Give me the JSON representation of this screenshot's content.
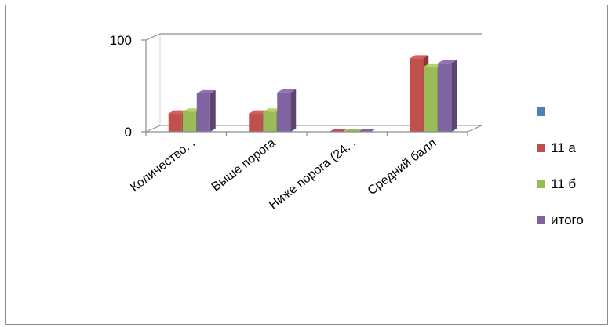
{
  "chart_data": {
    "type": "bar",
    "variant": "3d-clustered-column",
    "categories": [
      "Количество...",
      "Выше порога",
      "Ниже порога (24...",
      "Средний балл"
    ],
    "series": [
      {
        "name": "",
        "color": "#4f81bd",
        "values": [
          0,
          0,
          0,
          0
        ]
      },
      {
        "name": "11 а",
        "color": "#c0504d",
        "values": [
          20,
          20,
          0,
          80
        ]
      },
      {
        "name": "11 б",
        "color": "#9bbb59",
        "values": [
          22,
          22,
          0,
          71
        ]
      },
      {
        "name": "итого",
        "color": "#8064a2",
        "values": [
          42,
          43,
          0,
          75
        ]
      }
    ],
    "y_ticks": [
      "0",
      "100"
    ],
    "ylim": [
      0,
      100
    ],
    "title": "",
    "xlabel": "",
    "ylabel": "",
    "grid": true,
    "legend_position": "right"
  }
}
